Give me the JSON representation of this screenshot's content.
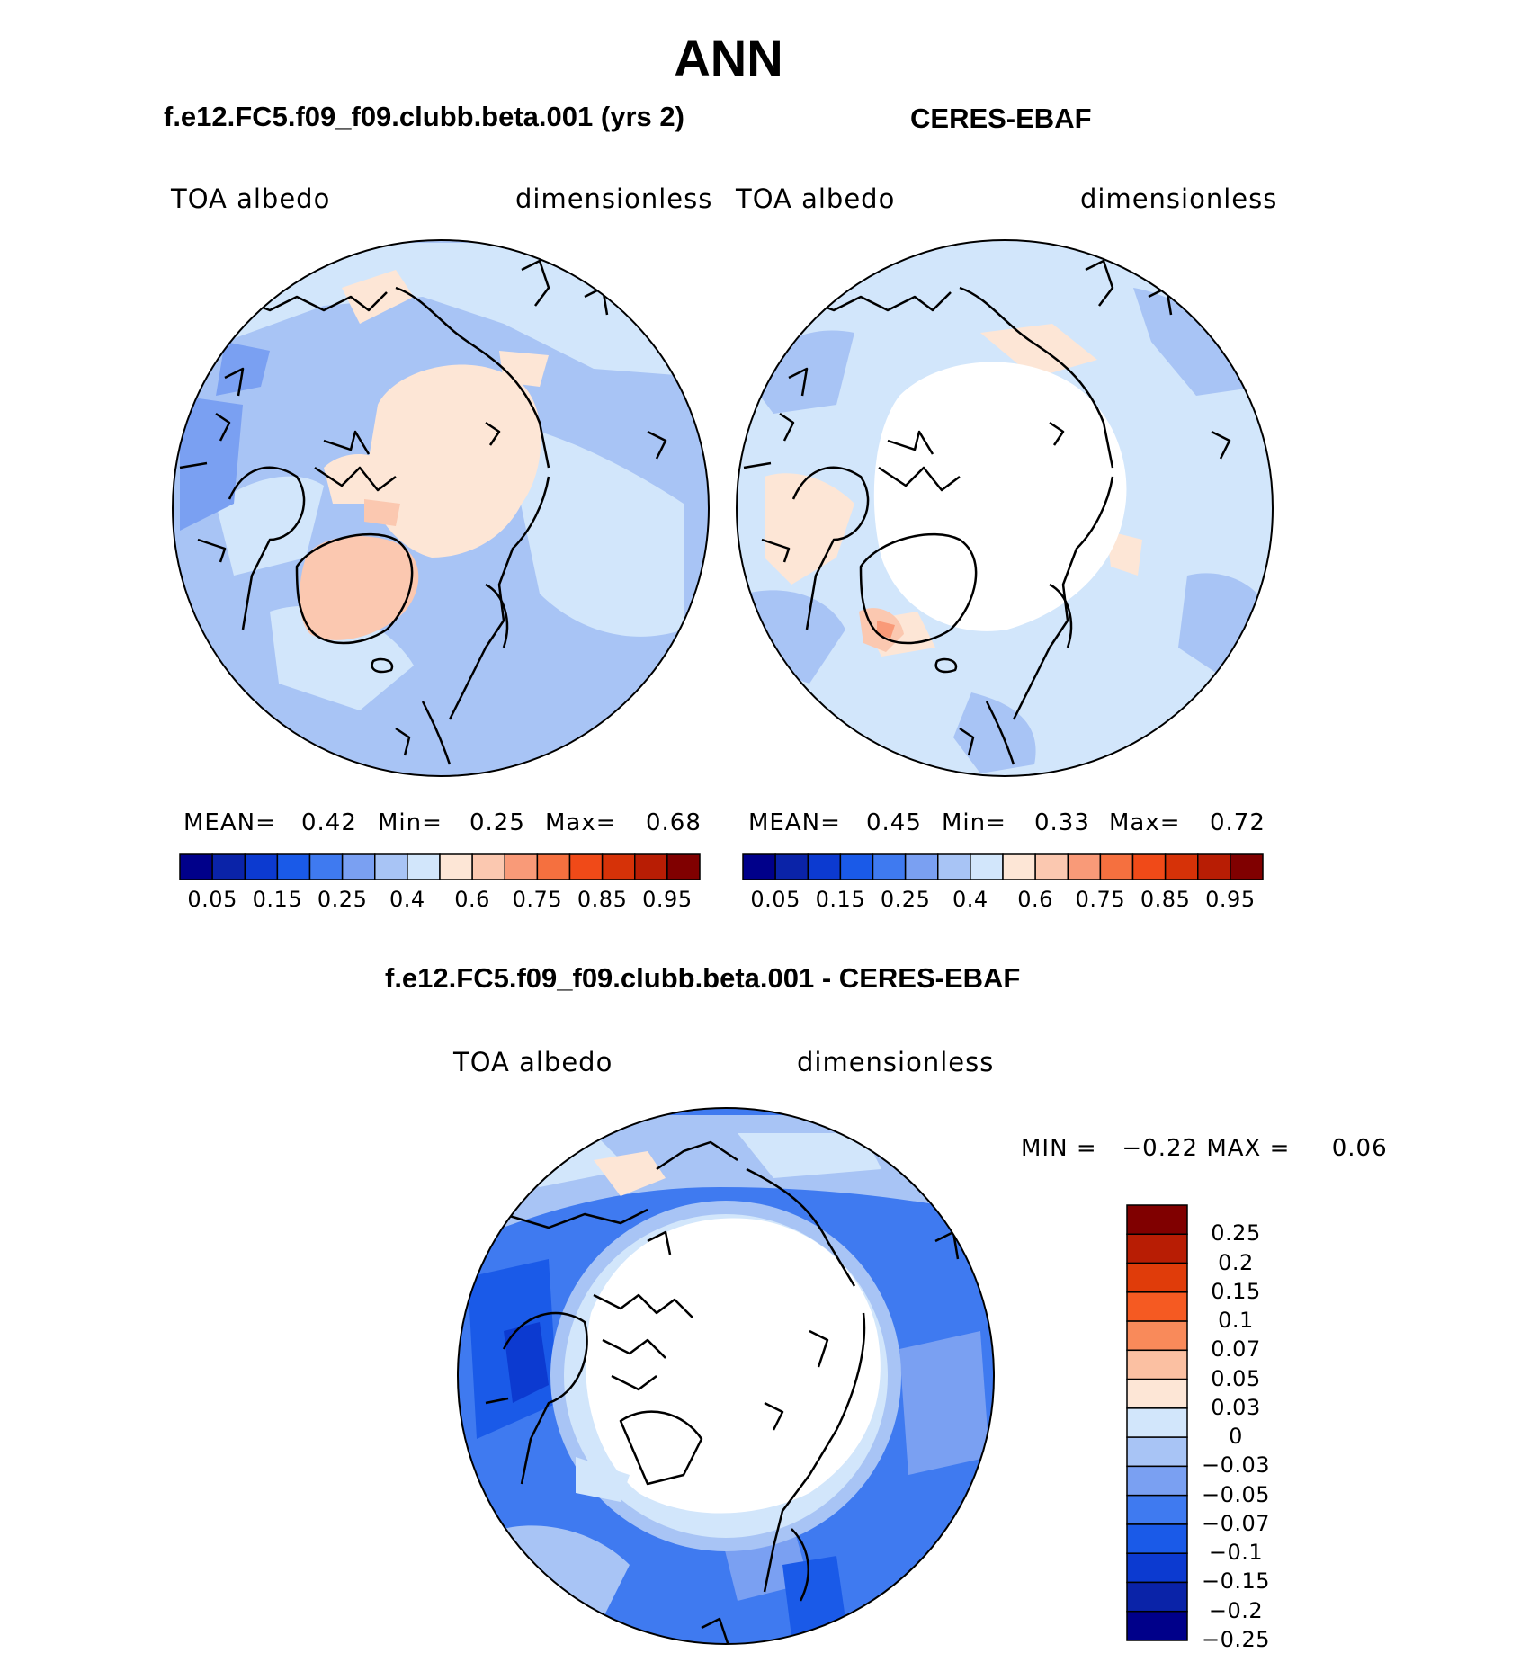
{
  "title": "ANN",
  "panels": [
    {
      "header": "f.e12.FC5.f09_f09.clubb.beta.001 (yrs 2)",
      "variable": "TOA albedo",
      "units": "dimensionless",
      "stats": {
        "mean_label": "MEAN=",
        "mean": "0.42",
        "min_label": "Min=",
        "min": "0.25",
        "max_label": "Max=",
        "max": "0.68"
      }
    },
    {
      "header": "CERES-EBAF",
      "variable": "TOA albedo",
      "units": "dimensionless",
      "stats": {
        "mean_label": "MEAN=",
        "mean": "0.45",
        "min_label": "Min=",
        "min": "0.33",
        "max_label": "Max=",
        "max": "0.72"
      }
    }
  ],
  "difference": {
    "header": "f.e12.FC5.f09_f09.clubb.beta.001 - CERES-EBAF",
    "variable": "TOA albedo",
    "units": "dimensionless",
    "range_text": "MIN =   −0.22 MAX =     0.06"
  },
  "colorbar_top": {
    "colors": [
      "#00008a",
      "#0a23a8",
      "#0c3ad0",
      "#1a5ae8",
      "#3f7af0",
      "#7aa0f2",
      "#a8c4f5",
      "#d2e6fb",
      "#fde6d6",
      "#fbc8b0",
      "#f99a78",
      "#f5703f",
      "#f04a18",
      "#d63208",
      "#b81d04",
      "#800000"
    ],
    "labels": [
      "0.05",
      "0.15",
      "0.25",
      "0.4",
      "0.6",
      "0.75",
      "0.85",
      "0.95"
    ]
  },
  "colorbar_diff": {
    "colors": [
      "#800000",
      "#b81d04",
      "#e03c0a",
      "#f55a22",
      "#f98a5a",
      "#fbc0a2",
      "#fde6d6",
      "#d2e6fb",
      "#a8c4f5",
      "#7aa0f2",
      "#3f7af0",
      "#1a5ae8",
      "#0c3ad0",
      "#0a23a8",
      "#00008a"
    ],
    "labels": [
      "0.25",
      "0.2",
      "0.15",
      "0.1",
      "0.07",
      "0.05",
      "0.03",
      "0",
      "−0.03",
      "−0.05",
      "−0.07",
      "−0.1",
      "−0.15",
      "−0.2",
      "−0.25"
    ]
  },
  "map_colors": {
    "ocean_a": "#a8c4f5",
    "light": "#d2e6fb",
    "peach": "#fde6d6",
    "salmon": "#fbc8b0",
    "white": "#ffffff",
    "mid_blue": "#3f7af0",
    "deep_blue": "#1a5ae8",
    "coast": "#000000"
  }
}
